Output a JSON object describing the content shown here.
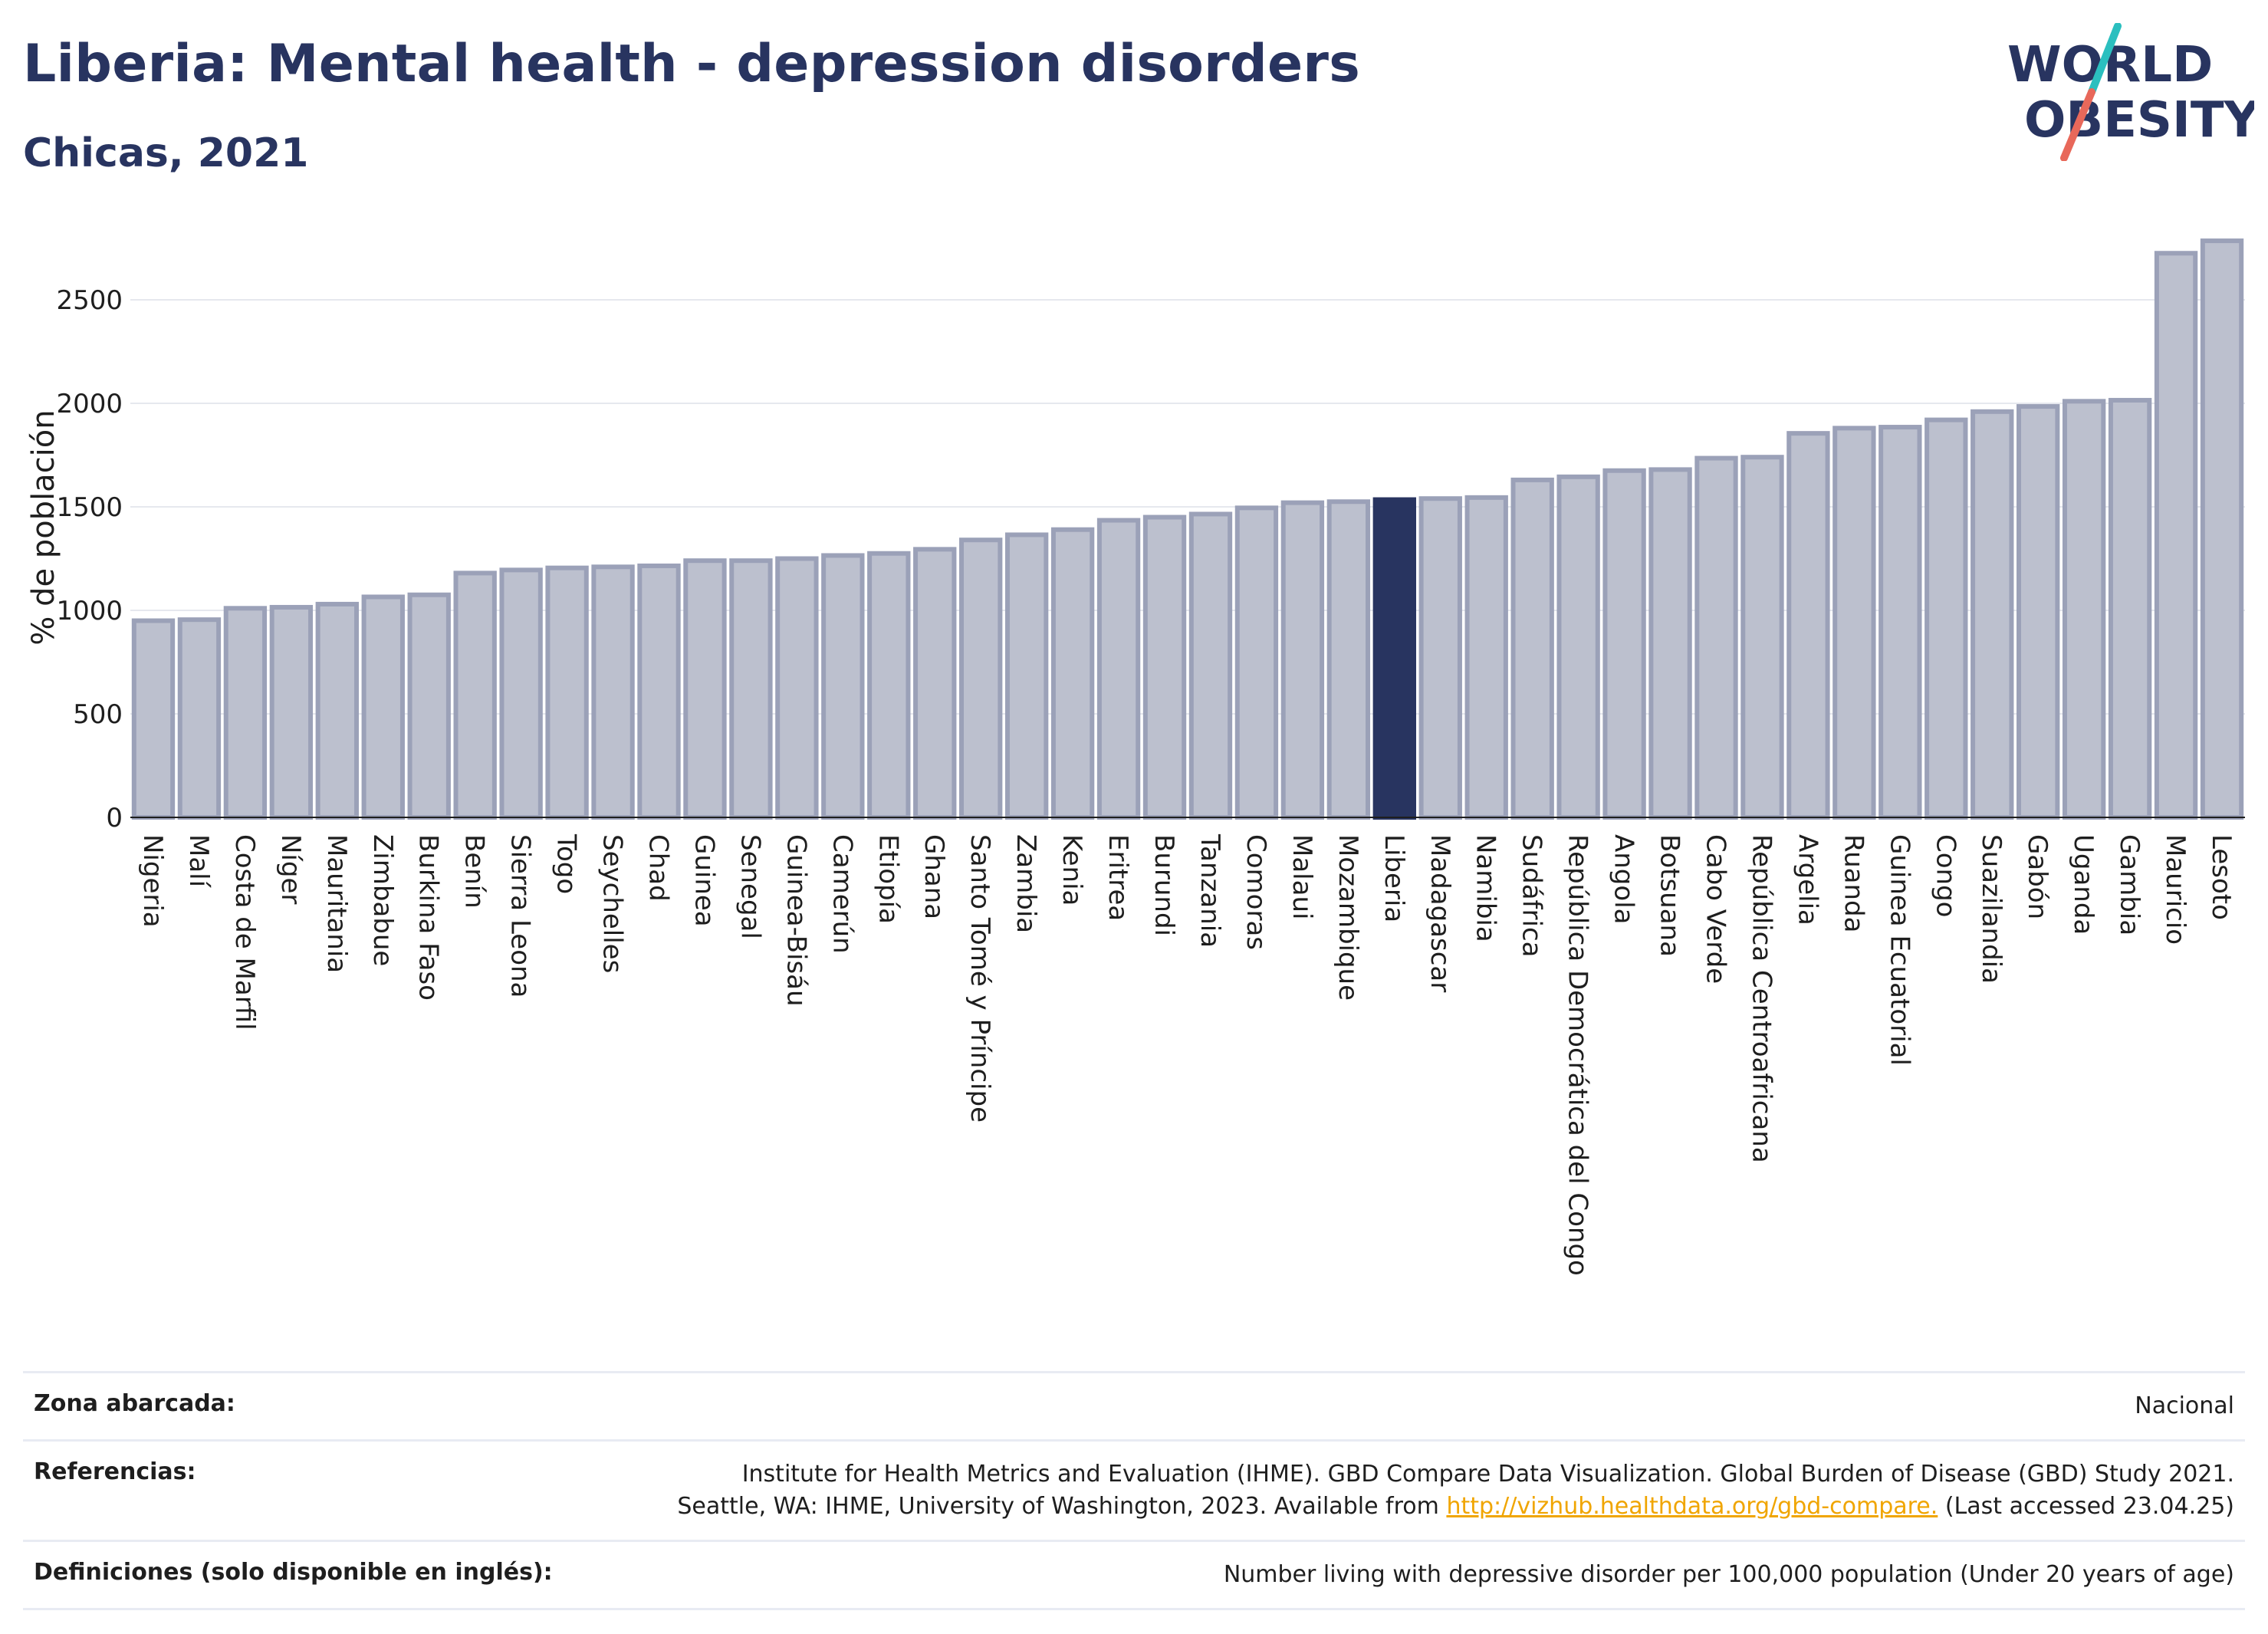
{
  "title": "Liberia: Mental health - depression disorders",
  "subtitle": "Chicas, 2021",
  "logo": {
    "line1": "WORLD",
    "line2": "OBESITY",
    "colors": {
      "text": "#283460",
      "accent1": "#2bbfbf",
      "accent2": "#e8685a"
    }
  },
  "colors": {
    "bar": "#bcc0ce",
    "bar_edge": "#9ba1b8",
    "highlight": "#283460",
    "grid": "#e6e8ee"
  },
  "chart_data": {
    "type": "bar",
    "ylabel": "% de población",
    "xlabel": "",
    "ylim": [
      0,
      2800
    ],
    "yticks": [
      0,
      500,
      1000,
      1500,
      2000,
      2500
    ],
    "grid": true,
    "highlight": "Liberia",
    "categories": [
      "Nigeria",
      "Malí",
      "Costa de Marfil",
      "Níger",
      "Mauritania",
      "Zimbabue",
      "Burkina Faso",
      "Benín",
      "Sierra Leona",
      "Togo",
      "Seychelles",
      "Chad",
      "Guinea",
      "Senegal",
      "Guinea-Bisáu",
      "Camerún",
      "Etiopía",
      "Ghana",
      "Santo Tomé y Príncipe",
      "Zambia",
      "Kenia",
      "Eritrea",
      "Burundi",
      "Tanzania",
      "Comoras",
      "Malaui",
      "Mozambique",
      "Liberia",
      "Madagascar",
      "Namibia",
      "Sudáfrica",
      "República Democrática del Congo",
      "Angola",
      "Botsuana",
      "Cabo Verde",
      "República Centroafricana",
      "Argelia",
      "Ruanda",
      "Guinea Ecuatorial",
      "Congo",
      "Suazilandia",
      "Gabón",
      "Uganda",
      "Gambia",
      "Mauricio",
      "Lesoto"
    ],
    "values": [
      950,
      955,
      1010,
      1015,
      1030,
      1065,
      1075,
      1180,
      1195,
      1205,
      1210,
      1215,
      1240,
      1240,
      1250,
      1265,
      1275,
      1295,
      1340,
      1365,
      1390,
      1435,
      1450,
      1465,
      1495,
      1520,
      1525,
      1535,
      1540,
      1545,
      1630,
      1645,
      1675,
      1680,
      1735,
      1740,
      1855,
      1880,
      1885,
      1920,
      1960,
      1985,
      2010,
      2015,
      2725,
      2785
    ]
  },
  "footer": {
    "rows": [
      {
        "label": "Zona abarcada:",
        "value_lines": [
          "Nacional"
        ]
      },
      {
        "label": "Referencias:",
        "value_lines": [
          "Institute for Health Metrics and Evaluation (IHME). GBD Compare Data Visualization. Global Burden of Disease (GBD) Study 2021.",
          "Seattle, WA: IHME, University of Washington, 2023. Available from"
        ],
        "link": "http://vizhub.healthdata.org/gbd-compare.",
        "suffix": "(Last accessed 23.04.25)"
      },
      {
        "label": "Definiciones (solo disponible en inglés):",
        "value_lines": [
          "Number living with depressive disorder per 100,000 population (Under 20 years of age)"
        ]
      }
    ]
  }
}
